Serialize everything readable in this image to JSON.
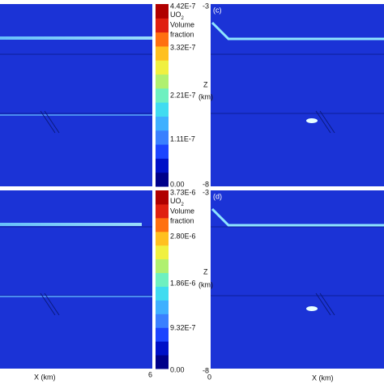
{
  "panels": [
    {
      "label": null
    },
    {
      "label": "(c)"
    },
    {
      "label": null
    },
    {
      "label": "(d)"
    }
  ],
  "colorbars": [
    {
      "top": "4.42E-7",
      "species": {
        "text": "UO",
        "sub": "2"
      },
      "line1": "Volume",
      "line2": "fraction",
      "ticks": [
        "3.32E-7",
        "2.21E-7",
        "1.11E-7",
        "0.00"
      ]
    },
    {
      "top": "3.73E-6",
      "species": {
        "text": "UO",
        "sub": "2"
      },
      "line1": "Volume",
      "line2": "fraction",
      "ticks": [
        "2.80E-6",
        "1.86E-6",
        "9.32E-7",
        "0.00"
      ]
    }
  ],
  "z_axes": [
    {
      "top": "-3",
      "name": "Z",
      "unit": "(km)",
      "bottom": "-8"
    },
    {
      "top": "-3",
      "name": "Z",
      "unit": "(km)",
      "bottom": "-8"
    }
  ],
  "x_axis": {
    "left_label": "X (km)",
    "left_end": "6",
    "right_start": "0",
    "right_label": "X (km)"
  }
}
